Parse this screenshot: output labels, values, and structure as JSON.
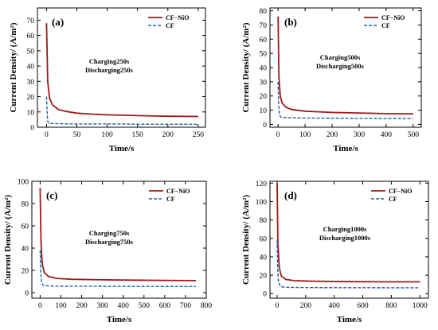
{
  "colors": {
    "cf_nio": "#9b1b1b",
    "cf": "#1f5fa8",
    "axis": "#000000"
  },
  "legend_labels": {
    "cf_nio": "CF−NiO",
    "cf": "CF"
  },
  "chart_data": [
    {
      "type": "line",
      "panel_label": "(a)",
      "annotation_lines": [
        "Charging250s",
        "Discharging250s"
      ],
      "xlabel": "Time/s",
      "ylabel": "Current Density/ (A/m²)",
      "xlim": [
        -15,
        262
      ],
      "ylim": [
        0,
        78
      ],
      "xticks": [
        0,
        50,
        100,
        150,
        200,
        250
      ],
      "yticks": [
        0,
        10,
        20,
        30,
        40,
        50,
        60,
        70
      ],
      "legend": "top-right",
      "grid": false,
      "series": [
        {
          "name": "CF−NiO",
          "style": "solid",
          "x": [
            0,
            2,
            5,
            10,
            20,
            30,
            50,
            75,
            100,
            150,
            200,
            250
          ],
          "y": [
            68,
            30,
            19,
            14.5,
            11.5,
            10.5,
            9.2,
            8.6,
            8.1,
            7.6,
            7.2,
            7
          ]
        },
        {
          "name": "CF",
          "style": "dashed",
          "x": [
            0,
            1,
            2,
            4,
            20,
            50,
            100,
            150,
            200,
            250
          ],
          "y": [
            20,
            10,
            4,
            2.5,
            2.3,
            2.1,
            2.2,
            2.0,
            2.0,
            1.9
          ]
        }
      ]
    },
    {
      "type": "line",
      "panel_label": "(b)",
      "annotation_lines": [
        "Charging500s",
        "Discharging500s"
      ],
      "xlabel": "Time/s",
      "ylabel": "Current Density/ (A/m²)",
      "xlim": [
        -30,
        530
      ],
      "ylim": [
        -2,
        82
      ],
      "xticks": [
        0,
        100,
        200,
        300,
        400,
        500
      ],
      "yticks": [
        0,
        10,
        20,
        30,
        40,
        50,
        60,
        70,
        80
      ],
      "legend": "top-right",
      "grid": false,
      "series": [
        {
          "name": "CF−NiO",
          "style": "solid",
          "x": [
            0,
            3,
            8,
            15,
            30,
            50,
            100,
            200,
            300,
            400,
            500
          ],
          "y": [
            76,
            34,
            20,
            15,
            12,
            10.5,
            9.3,
            8.4,
            8.0,
            7.6,
            7.4
          ]
        },
        {
          "name": "CF",
          "style": "dashed",
          "x": [
            0,
            2,
            5,
            10,
            30,
            100,
            200,
            300,
            400,
            500
          ],
          "y": [
            30,
            14,
            7,
            5,
            4.7,
            4.5,
            4.4,
            4.3,
            4.2,
            4.1
          ]
        }
      ]
    },
    {
      "type": "line",
      "panel_label": "(c)",
      "annotation_lines": [
        "Charging750s",
        "Discharging750s"
      ],
      "xlabel": "Time/s",
      "ylabel": "Current Density/ (A/m²)",
      "xlim": [
        -40,
        800
      ],
      "ylim": [
        -5,
        100
      ],
      "xticks": [
        0,
        100,
        200,
        300,
        400,
        500,
        600,
        700,
        800
      ],
      "yticks": [
        0,
        20,
        40,
        60,
        80,
        100
      ],
      "legend": "top-right",
      "grid": false,
      "series": [
        {
          "name": "CF−NiO",
          "style": "solid",
          "x": [
            0,
            4,
            10,
            20,
            40,
            80,
            150,
            300,
            450,
            600,
            750
          ],
          "y": [
            94,
            45,
            26,
            18,
            14.5,
            12.8,
            12,
            11.5,
            11.2,
            11,
            10.8
          ]
        },
        {
          "name": "CF",
          "style": "dashed",
          "x": [
            0,
            3,
            7,
            15,
            40,
            100,
            300,
            500,
            750
          ],
          "y": [
            38,
            18,
            9,
            6.5,
            6,
            5.8,
            5.7,
            5.6,
            5.5
          ]
        }
      ]
    },
    {
      "type": "line",
      "panel_label": "(d)",
      "annotation_lines": [
        "Charging1000s",
        "Discharging1000s"
      ],
      "xlabel": "Time/s",
      "ylabel": "Current Density/ (A/m²)",
      "xlim": [
        -50,
        1060
      ],
      "ylim": [
        -5,
        122
      ],
      "xticks": [
        0,
        200,
        400,
        600,
        800,
        1000
      ],
      "yticks": [
        0,
        20,
        40,
        60,
        80,
        100,
        120
      ],
      "legend": "top-right",
      "grid": false,
      "series": [
        {
          "name": "CF−NiO",
          "style": "solid",
          "x": [
            0,
            5,
            15,
            30,
            60,
            120,
            250,
            500,
            750,
            1000
          ],
          "y": [
            120,
            55,
            28,
            19,
            15.5,
            14,
            13.5,
            13,
            12.8,
            12.8
          ]
        },
        {
          "name": "CF",
          "style": "dashed",
          "x": [
            0,
            4,
            10,
            25,
            60,
            200,
            500,
            800,
            1000
          ],
          "y": [
            58,
            26,
            12,
            7.5,
            6.8,
            6.5,
            6.4,
            6.3,
            6.3
          ]
        }
      ]
    }
  ]
}
